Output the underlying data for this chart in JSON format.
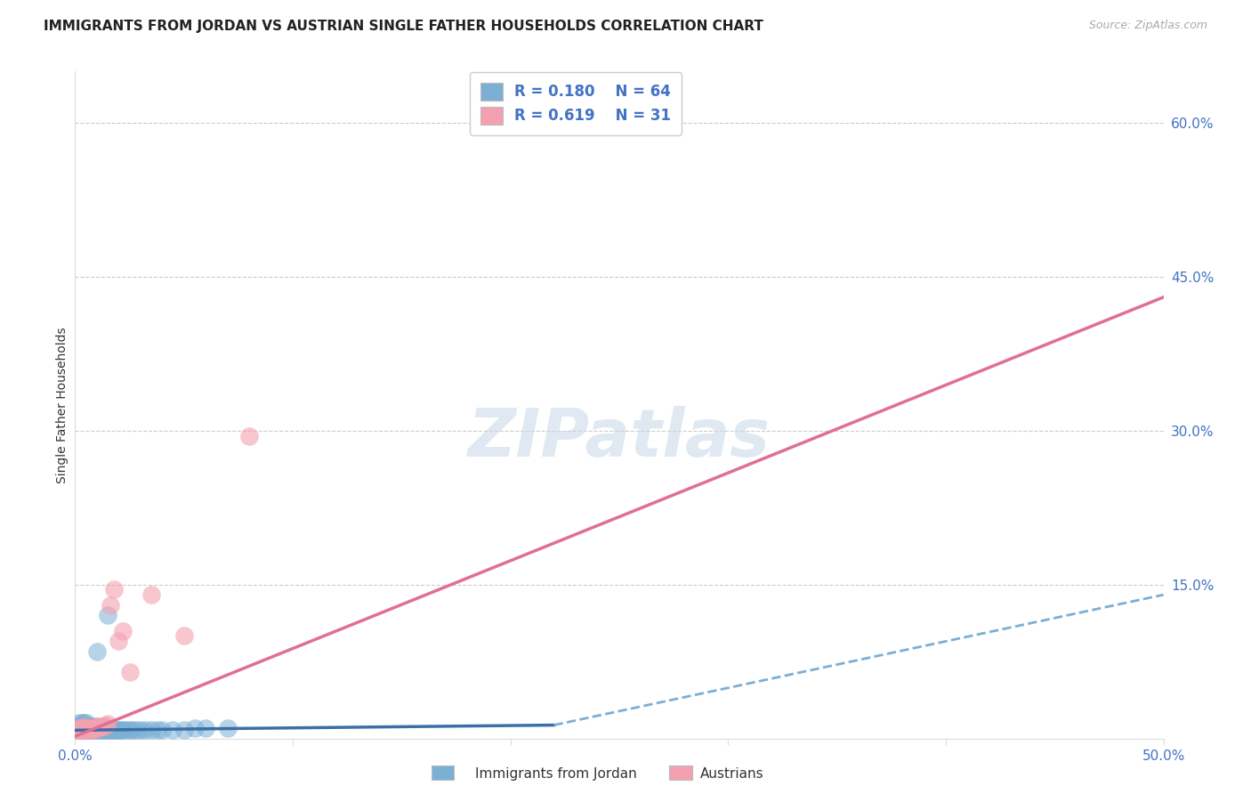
{
  "title": "IMMIGRANTS FROM JORDAN VS AUSTRIAN SINGLE FATHER HOUSEHOLDS CORRELATION CHART",
  "source": "Source: ZipAtlas.com",
  "ylabel": "Single Father Households",
  "xlim": [
    0.0,
    0.5
  ],
  "ylim": [
    0.0,
    0.65
  ],
  "ytick_vals_right": [
    0.6,
    0.45,
    0.3,
    0.15
  ],
  "grid_color": "#cccccc",
  "background_color": "#ffffff",
  "color_jordan": "#7bafd4",
  "color_austrian": "#f4a0b0",
  "line_color_jordan_solid": "#3a6fa8",
  "line_color_jordan_dash": "#7bafd4",
  "line_color_austrian": "#e07090",
  "jordan_x": [
    0.001,
    0.001,
    0.002,
    0.002,
    0.002,
    0.002,
    0.003,
    0.003,
    0.003,
    0.003,
    0.004,
    0.004,
    0.004,
    0.004,
    0.005,
    0.005,
    0.005,
    0.005,
    0.006,
    0.006,
    0.006,
    0.007,
    0.007,
    0.007,
    0.008,
    0.008,
    0.008,
    0.009,
    0.009,
    0.01,
    0.01,
    0.01,
    0.011,
    0.011,
    0.012,
    0.012,
    0.013,
    0.013,
    0.014,
    0.015,
    0.015,
    0.016,
    0.017,
    0.018,
    0.019,
    0.02,
    0.021,
    0.022,
    0.023,
    0.025,
    0.026,
    0.028,
    0.03,
    0.032,
    0.035,
    0.038,
    0.04,
    0.045,
    0.05,
    0.055,
    0.06,
    0.07,
    0.015,
    0.01
  ],
  "jordan_y": [
    0.008,
    0.01,
    0.008,
    0.01,
    0.012,
    0.015,
    0.008,
    0.01,
    0.012,
    0.015,
    0.008,
    0.01,
    0.012,
    0.015,
    0.008,
    0.01,
    0.012,
    0.015,
    0.008,
    0.01,
    0.012,
    0.008,
    0.01,
    0.012,
    0.008,
    0.01,
    0.012,
    0.008,
    0.01,
    0.008,
    0.01,
    0.012,
    0.008,
    0.01,
    0.008,
    0.01,
    0.008,
    0.01,
    0.008,
    0.008,
    0.01,
    0.008,
    0.008,
    0.008,
    0.008,
    0.008,
    0.008,
    0.008,
    0.008,
    0.008,
    0.008,
    0.008,
    0.008,
    0.008,
    0.008,
    0.008,
    0.008,
    0.008,
    0.008,
    0.01,
    0.01,
    0.01,
    0.12,
    0.085
  ],
  "austrian_x": [
    0.001,
    0.002,
    0.002,
    0.003,
    0.003,
    0.004,
    0.004,
    0.005,
    0.005,
    0.006,
    0.006,
    0.007,
    0.007,
    0.008,
    0.008,
    0.009,
    0.01,
    0.01,
    0.011,
    0.012,
    0.013,
    0.014,
    0.015,
    0.016,
    0.018,
    0.02,
    0.022,
    0.025,
    0.035,
    0.05,
    0.08
  ],
  "austrian_y": [
    0.008,
    0.008,
    0.01,
    0.008,
    0.01,
    0.008,
    0.012,
    0.008,
    0.01,
    0.008,
    0.01,
    0.008,
    0.01,
    0.008,
    0.01,
    0.01,
    0.01,
    0.012,
    0.01,
    0.012,
    0.012,
    0.013,
    0.014,
    0.13,
    0.145,
    0.095,
    0.105,
    0.065,
    0.14,
    0.1,
    0.295
  ],
  "jordan_line_x0": 0.0,
  "jordan_line_y0": 0.008,
  "jordan_line_x_break": 0.22,
  "jordan_line_y_break": 0.013,
  "jordan_line_x1": 0.5,
  "jordan_line_y1": 0.14,
  "austrian_line_x0": 0.0,
  "austrian_line_y0": 0.002,
  "austrian_line_x1": 0.5,
  "austrian_line_y1": 0.43,
  "title_fontsize": 11,
  "axis_label_fontsize": 10,
  "tick_fontsize": 11,
  "legend_R1": "R = 0.180",
  "legend_N1": "N = 64",
  "legend_R2": "R = 0.619",
  "legend_N2": "N = 31",
  "legend_label1": "Immigrants from Jordan",
  "legend_label2": "Austrians"
}
